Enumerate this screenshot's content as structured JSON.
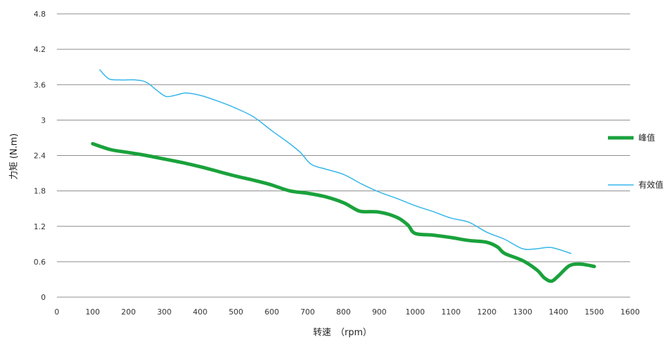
{
  "chart_data": {
    "type": "line",
    "title": "",
    "xlabel": "转速　（rpm）",
    "ylabel": "力矩 (N.m)",
    "xlim": [
      0,
      1600
    ],
    "ylim": [
      0,
      4.8
    ],
    "x_ticks": [
      "0",
      "100",
      "200",
      "300",
      "400",
      "500",
      "600",
      "700",
      "800",
      "900",
      "1000",
      "1100",
      "1200",
      "1300",
      "1400",
      "1500",
      "1600"
    ],
    "y_ticks": [
      "0",
      "0.6",
      "1.2",
      "1.8",
      "2.4",
      "3",
      "3.6",
      "4.2",
      "4.8"
    ],
    "grid": "horizontal",
    "legend_position": "right",
    "series": [
      {
        "name": "峰值",
        "color": "#1aa23c",
        "points": [
          [
            100,
            2.6
          ],
          [
            150,
            2.5
          ],
          [
            200,
            2.45
          ],
          [
            250,
            2.4
          ],
          [
            300,
            2.34
          ],
          [
            350,
            2.28
          ],
          [
            400,
            2.21
          ],
          [
            450,
            2.13
          ],
          [
            500,
            2.05
          ],
          [
            550,
            1.98
          ],
          [
            600,
            1.9
          ],
          [
            650,
            1.8
          ],
          [
            700,
            1.76
          ],
          [
            750,
            1.7
          ],
          [
            800,
            1.6
          ],
          [
            830,
            1.5
          ],
          [
            850,
            1.45
          ],
          [
            900,
            1.44
          ],
          [
            950,
            1.35
          ],
          [
            980,
            1.22
          ],
          [
            1000,
            1.08
          ],
          [
            1050,
            1.05
          ],
          [
            1100,
            1.01
          ],
          [
            1150,
            0.96
          ],
          [
            1200,
            0.93
          ],
          [
            1230,
            0.85
          ],
          [
            1250,
            0.74
          ],
          [
            1300,
            0.62
          ],
          [
            1340,
            0.46
          ],
          [
            1360,
            0.33
          ],
          [
            1380,
            0.27
          ],
          [
            1400,
            0.36
          ],
          [
            1430,
            0.53
          ],
          [
            1460,
            0.56
          ],
          [
            1500,
            0.52
          ]
        ]
      },
      {
        "name": "有效值",
        "color": "#34b6ea",
        "points": [
          [
            120,
            3.85
          ],
          [
            145,
            3.7
          ],
          [
            175,
            3.68
          ],
          [
            220,
            3.68
          ],
          [
            250,
            3.64
          ],
          [
            280,
            3.5
          ],
          [
            305,
            3.4
          ],
          [
            330,
            3.42
          ],
          [
            360,
            3.46
          ],
          [
            400,
            3.42
          ],
          [
            450,
            3.32
          ],
          [
            500,
            3.2
          ],
          [
            550,
            3.05
          ],
          [
            600,
            2.82
          ],
          [
            650,
            2.6
          ],
          [
            680,
            2.45
          ],
          [
            710,
            2.25
          ],
          [
            750,
            2.17
          ],
          [
            800,
            2.08
          ],
          [
            850,
            1.92
          ],
          [
            900,
            1.78
          ],
          [
            950,
            1.67
          ],
          [
            1000,
            1.55
          ],
          [
            1050,
            1.45
          ],
          [
            1100,
            1.34
          ],
          [
            1150,
            1.27
          ],
          [
            1200,
            1.1
          ],
          [
            1250,
            0.98
          ],
          [
            1300,
            0.82
          ],
          [
            1340,
            0.82
          ],
          [
            1380,
            0.84
          ],
          [
            1435,
            0.74
          ]
        ]
      }
    ]
  }
}
